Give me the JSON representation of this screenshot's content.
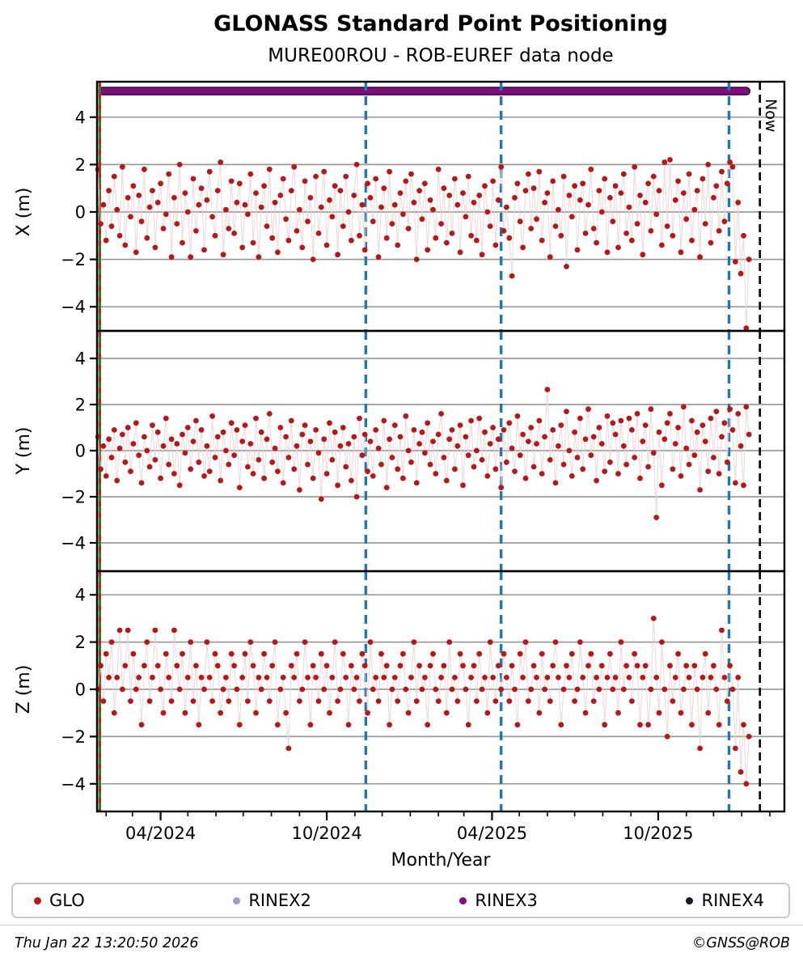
{
  "header": {
    "title": "GLONASS Standard Point Positioning",
    "subtitle": "MURE00ROU - ROB-EUREF data node"
  },
  "footer": {
    "timestamp": "Thu Jan 22 13:20:50 2026",
    "copyright": "©GNSS@ROB"
  },
  "legend": {
    "items": [
      {
        "label": "GLO",
        "color": "#b81717"
      },
      {
        "label": "RINEX2",
        "color": "#9b9bd0"
      },
      {
        "label": "RINEX3",
        "color": "#7d0e7d"
      },
      {
        "label": "RINEX4",
        "color": "#26102e"
      }
    ]
  },
  "colors": {
    "point": "#b81717",
    "point_line": "#edcfcf",
    "grid": "#9b9b9b",
    "axis": "#000000",
    "event_blue": "#1f77b4",
    "start_green": "#1c8a1c",
    "start_red": "#cc2020",
    "rinex3_band": "#7d0e7d",
    "rinex3_band_edge": "#420746",
    "now_line": "#000000"
  },
  "chart_data": {
    "type": "scatter",
    "title": "GLONASS Standard Point Positioning",
    "subtitle": "MURE00ROU - ROB-EUREF data node",
    "xlabel": "Month/Year",
    "x_axis_start_date": "2024-01-22",
    "x_range_days": [
      0,
      757
    ],
    "ylim": [
      -5.3,
      5.3
    ],
    "y_ticks": [
      -4,
      -2,
      0,
      2,
      4
    ],
    "x_ticks": [
      {
        "day": 70,
        "label": "04/2024"
      },
      {
        "day": 253,
        "label": "10/2024"
      },
      {
        "day": 435,
        "label": "04/2025"
      },
      {
        "day": 618,
        "label": "10/2025"
      }
    ],
    "x_minor_tick_days": [
      10,
      39,
      100,
      131,
      161,
      192,
      223,
      284,
      314,
      345,
      376,
      404,
      465,
      496,
      526,
      557,
      588,
      649,
      679,
      710,
      741
    ],
    "events": {
      "data_start_day": 3,
      "blue_dashed_days": [
        296,
        445,
        696
      ],
      "now_day": 730,
      "now_label": "Now",
      "rinex3_band": {
        "day_start": 2,
        "day_end": 719,
        "y_value": 5.1
      }
    },
    "series": [
      {
        "name": "GLO X",
        "ylabel": "X (m)",
        "start_day": 1,
        "step_days": 3,
        "values": [
          1.8,
          -0.5,
          0.3,
          -1.2,
          0.9,
          -0.6,
          1.5,
          0.1,
          -1.0,
          1.9,
          -1.4,
          0.6,
          -0.2,
          1.1,
          -1.7,
          0.7,
          -0.4,
          1.8,
          -1.1,
          0.2,
          0.9,
          -1.5,
          0.4,
          1.2,
          -0.7,
          -0.1,
          1.6,
          -1.9,
          0.6,
          -0.5,
          2.0,
          -1.3,
          0.8,
          0.0,
          -1.9,
          1.4,
          -0.8,
          0.3,
          1.0,
          -1.6,
          0.5,
          1.7,
          -0.2,
          -1.0,
          0.9,
          2.1,
          -1.8,
          0.1,
          -0.7,
          1.3,
          -0.9,
          0.4,
          1.2,
          -1.5,
          0.3,
          -0.1,
          1.6,
          -1.3,
          0.8,
          -1.9,
          0.2,
          1.1,
          -0.6,
          1.8,
          -1.1,
          0.4,
          -1.7,
          0.7,
          1.4,
          -0.3,
          -1.2,
          0.9,
          1.9,
          -0.8,
          0.1,
          -1.5,
          1.3,
          -0.4,
          0.6,
          -2.0,
          1.5,
          -0.9,
          0.2,
          1.7,
          -1.4,
          0.5,
          -0.2,
          1.1,
          -1.8,
          0.9,
          -0.6,
          1.5,
          0.0,
          -1.2,
          0.7,
          2.0,
          -1.0,
          0.3,
          -1.6,
          1.2,
          0.6,
          -0.4,
          1.4,
          -1.9,
          0.2,
          1.0,
          -1.1,
          1.7,
          -0.5,
          0.3,
          -1.4,
          0.8,
          -0.1,
          1.3,
          -0.7,
          1.6,
          0.4,
          -2.0,
          0.9,
          -0.3,
          1.2,
          -1.6,
          0.5,
          0.1,
          -1.1,
          1.8,
          -0.5,
          1.0,
          -1.3,
          0.7,
          -0.9,
          1.4,
          0.3,
          -1.7,
          0.8,
          -0.2,
          1.5,
          -1.0,
          0.4,
          -1.2,
          0.7,
          -1.8,
          1.1,
          0.0,
          -0.6,
          1.3,
          -1.4,
          0.5,
          1.9,
          -0.8,
          0.2,
          -1.1,
          -2.7,
          0.6,
          1.2,
          -0.4,
          -1.5,
          0.9,
          1.6,
          -0.7,
          1.0,
          -0.3,
          1.7,
          -1.2,
          0.4,
          0.8,
          -1.9,
          1.3,
          -0.6,
          0.1,
          -1.0,
          1.5,
          -2.3,
          0.7,
          -0.2,
          1.1,
          -1.6,
          0.5,
          1.2,
          -0.9,
          0.3,
          1.8,
          -0.7,
          -1.3,
          0.9,
          0.0,
          1.4,
          -1.7,
          0.6,
          -0.4,
          1.1,
          -1.5,
          0.8,
          1.6,
          -0.9,
          0.2,
          -1.2,
          1.9,
          -0.5,
          0.7,
          -1.8,
          0.4,
          1.2,
          -0.8,
          1.5,
          -0.1,
          0.9,
          -1.4,
          2.1,
          -0.6,
          2.2,
          -1.0,
          0.5,
          1.3,
          -1.7,
          0.8,
          -0.3,
          1.6,
          -1.2,
          0.1,
          0.9,
          -1.9,
          1.4,
          -0.5,
          2.0,
          -1.3,
          0.6,
          1.1,
          -0.8,
          1.7,
          -0.4,
          1.2,
          2.1,
          1.9,
          -2.1,
          0.4,
          -2.6,
          -1.0,
          -4.9,
          -2.0
        ]
      },
      {
        "name": "GLO Y",
        "ylabel": "Y (m)",
        "start_day": 1,
        "step_days": 3,
        "values": [
          0.6,
          -0.8,
          0.2,
          -1.1,
          0.5,
          -0.3,
          0.9,
          -1.3,
          0.1,
          0.7,
          -0.5,
          1.0,
          -0.9,
          0.3,
          1.2,
          -0.2,
          -1.4,
          0.6,
          0.0,
          -0.7,
          1.1,
          -0.4,
          0.8,
          -1.2,
          0.2,
          1.4,
          -0.6,
          0.5,
          -1.0,
          0.3,
          -1.5,
          0.7,
          -0.1,
          1.0,
          -0.8,
          0.4,
          1.3,
          -0.5,
          0.9,
          -1.1,
          0.2,
          -0.9,
          1.5,
          -0.3,
          0.6,
          -1.3,
          0.8,
          0.0,
          -0.6,
          1.2,
          -0.2,
          0.9,
          -1.6,
          0.4,
          1.1,
          -0.7,
          0.3,
          -1.0,
          1.4,
          -0.4,
          0.8,
          -1.2,
          0.5,
          1.6,
          -0.5,
          0.1,
          -0.9,
          1.0,
          -1.4,
          0.6,
          -0.3,
          1.3,
          -0.8,
          0.2,
          -1.7,
          0.7,
          1.1,
          -0.6,
          0.4,
          -1.2,
          0.9,
          -0.1,
          -2.1,
          0.5,
          -1.0,
          1.2,
          -0.4,
          0.8,
          -1.5,
          0.2,
          1.0,
          -0.7,
          0.3,
          -1.3,
          0.6,
          -2.0,
          1.4,
          -0.2,
          0.7,
          -0.9,
          0.4,
          -1.1,
          0.9,
          0.1,
          -0.6,
          1.3,
          -1.6,
          0.5,
          -0.3,
          1.1,
          -0.8,
          0.6,
          -1.2,
          1.5,
          0.0,
          -0.5,
          0.9,
          -1.4,
          0.3,
          0.8,
          -0.1,
          1.2,
          -0.6,
          0.4,
          -1.0,
          0.7,
          1.6,
          -0.3,
          -1.3,
          0.5,
          0.9,
          -0.8,
          0.2,
          1.1,
          -1.5,
          0.6,
          -0.2,
          1.3,
          -0.7,
          0.0,
          1.4,
          -0.4,
          0.8,
          -1.1,
          0.3,
          1.0,
          -0.8,
          0.5,
          -1.6,
          0.9,
          -0.5,
          1.2,
          0.1,
          -0.9,
          1.5,
          -0.2,
          0.7,
          -1.2,
          0.4,
          1.0,
          -0.7,
          0.3,
          1.3,
          -1.0,
          0.6,
          2.65,
          -0.4,
          0.9,
          -1.4,
          0.2,
          1.1,
          -0.6,
          1.7,
          0.0,
          -1.1,
          0.8,
          -0.3,
          1.4,
          -0.8,
          0.5,
          1.8,
          -0.2,
          0.6,
          -1.3,
          1.0,
          0.3,
          -0.9,
          1.5,
          -0.5,
          1.2,
          0.7,
          -1.0,
          1.3,
          0.2,
          -0.6,
          1.4,
          0.9,
          -0.3,
          1.6,
          -1.2,
          0.4,
          1.1,
          -0.7,
          1.8,
          -0.1,
          -2.9,
          0.8,
          -1.5,
          0.5,
          1.2,
          1.6,
          -0.8,
          0.3,
          1.0,
          -1.1,
          1.9,
          0.1,
          -0.6,
          1.3,
          -0.2,
          0.8,
          -1.7,
          1.1,
          0.4,
          -0.9,
          1.4,
          -0.3,
          1.7,
          -1.0,
          0.6,
          1.2,
          -0.5,
          1.8,
          0.9,
          -1.4,
          1.6,
          0.2,
          -1.5,
          1.9,
          0.7
        ]
      },
      {
        "name": "GLO Z",
        "ylabel": "Z (m)",
        "start_day": 1,
        "step_days": 3,
        "values": [
          0.0,
          1.0,
          -0.5,
          1.5,
          0.5,
          2.0,
          -1.0,
          0.5,
          2.5,
          0.0,
          1.0,
          2.5,
          -0.5,
          1.5,
          0.0,
          0.5,
          -1.5,
          1.0,
          2.0,
          -0.5,
          0.5,
          2.5,
          1.0,
          0.0,
          -1.0,
          1.5,
          0.5,
          -0.5,
          2.5,
          1.0,
          0.0,
          1.5,
          -1.0,
          0.5,
          2.0,
          -0.5,
          1.0,
          -1.5,
          0.5,
          0.0,
          2.0,
          0.5,
          -0.5,
          1.5,
          1.0,
          -1.0,
          0.0,
          0.5,
          -0.5,
          1.5,
          1.0,
          0.0,
          -1.5,
          0.5,
          1.5,
          -0.5,
          2.0,
          1.0,
          -1.0,
          0.5,
          0.0,
          1.5,
          0.5,
          -0.5,
          1.0,
          2.0,
          -1.5,
          0.0,
          0.5,
          -1.0,
          -2.5,
          1.0,
          0.5,
          1.5,
          -0.5,
          0.0,
          2.0,
          0.5,
          -1.5,
          1.0,
          0.5,
          -0.5,
          1.5,
          0.0,
          1.0,
          -1.0,
          0.5,
          2.0,
          -0.5,
          0.0,
          1.5,
          0.5,
          -1.5,
          1.0,
          0.0,
          0.5,
          -0.5,
          1.5,
          1.0,
          -1.0,
          2.0,
          0.0,
          0.5,
          -0.5,
          1.5,
          0.5,
          1.0,
          -1.5,
          0.0,
          0.5,
          -0.5,
          1.0,
          1.5,
          0.0,
          -1.0,
          0.5,
          2.0,
          -0.5,
          1.0,
          0.0,
          0.5,
          -1.5,
          1.0,
          1.5,
          0.0,
          -0.5,
          0.5,
          1.0,
          -1.0,
          2.0,
          0.0,
          0.5,
          -0.5,
          1.5,
          1.0,
          0.0,
          -1.5,
          0.5,
          1.0,
          -0.5,
          1.5,
          0.0,
          0.5,
          -1.0,
          2.0,
          0.5,
          -0.5,
          1.0,
          0.0,
          1.5,
          0.5,
          -0.5,
          1.0,
          0.0,
          -1.5,
          1.5,
          0.5,
          2.0,
          -0.5,
          0.0,
          1.0,
          0.5,
          -1.0,
          1.5,
          0.0,
          0.5,
          -0.5,
          1.0,
          2.0,
          0.5,
          -1.5,
          0.0,
          1.0,
          0.5,
          1.5,
          -0.5,
          0.0,
          2.0,
          0.5,
          -1.0,
          1.0,
          1.5,
          -0.5,
          0.5,
          0.0,
          1.0,
          -1.5,
          0.5,
          1.5,
          0.0,
          0.5,
          -1.0,
          2.0,
          0.0,
          1.0,
          0.5,
          -0.5,
          1.5,
          1.0,
          -1.5,
          0.5,
          1.0,
          -1.5,
          0.0,
          3.0,
          0.5,
          -1.0,
          2.0,
          0.0,
          -2.0,
          1.0,
          -0.5,
          0.5,
          1.5,
          -1.0,
          0.0,
          1.0,
          0.5,
          -1.5,
          1.0,
          0.0,
          -2.5,
          0.5,
          1.5,
          -1.0,
          0.5,
          1.0,
          0.0,
          -1.5,
          2.5,
          0.5,
          -0.5,
          1.0,
          0.0,
          -2.5,
          0.5,
          -3.5,
          -1.5,
          -4.0,
          -2.0
        ]
      }
    ],
    "legend_entries": [
      "GLO",
      "RINEX2",
      "RINEX3",
      "RINEX4"
    ],
    "legend_position": "bottom",
    "grid": true
  }
}
